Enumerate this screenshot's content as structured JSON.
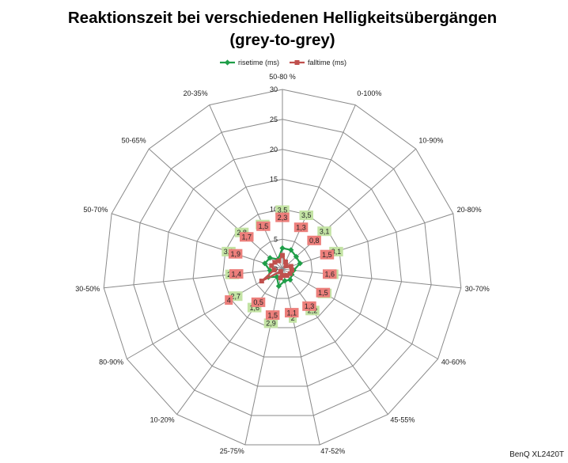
{
  "chart_data": {
    "type": "radar",
    "title": [
      "Reaktionszeit bei verschiedenen Helligkeitsübergängen",
      "(grey-to-grey)"
    ],
    "categories": [
      "50-80 %",
      "0-100%",
      "10-90%",
      "20-80%",
      "30-70%",
      "40-60%",
      "45-55%",
      "47-52%",
      "25-75%",
      "10-20%",
      "80-90%",
      "30-50%",
      "50-70%",
      "50-65%",
      "20-35%"
    ],
    "series": [
      {
        "name": "risetime (ms)",
        "values": [
          3.5,
          3.5,
          3.1,
          3.1,
          1.9,
          1.8,
          2.2,
          2,
          2.9,
          1.6,
          2.7,
          2.1,
          3.1,
          2.8,
          1.8
        ],
        "color": "#1f9e48",
        "marker": "diamond",
        "label_fill": "#c3e3a4"
      },
      {
        "name": "falltime (ms)",
        "values": [
          2.3,
          1.3,
          0.8,
          1.5,
          1.6,
          1.5,
          1.3,
          1.1,
          1.5,
          0.5,
          4,
          1.4,
          1.9,
          1.7,
          1.5
        ],
        "color": "#c0504d",
        "marker": "square",
        "label_fill": "#ec7f7b"
      }
    ],
    "r_ticks": [
      0,
      5,
      10,
      15,
      20,
      25,
      30
    ],
    "rlim": [
      0,
      30
    ],
    "grid": true,
    "grid_color": "#8a8a8a",
    "legend": "top",
    "data_labels": true,
    "annotation": "BenQ XL2420T"
  }
}
